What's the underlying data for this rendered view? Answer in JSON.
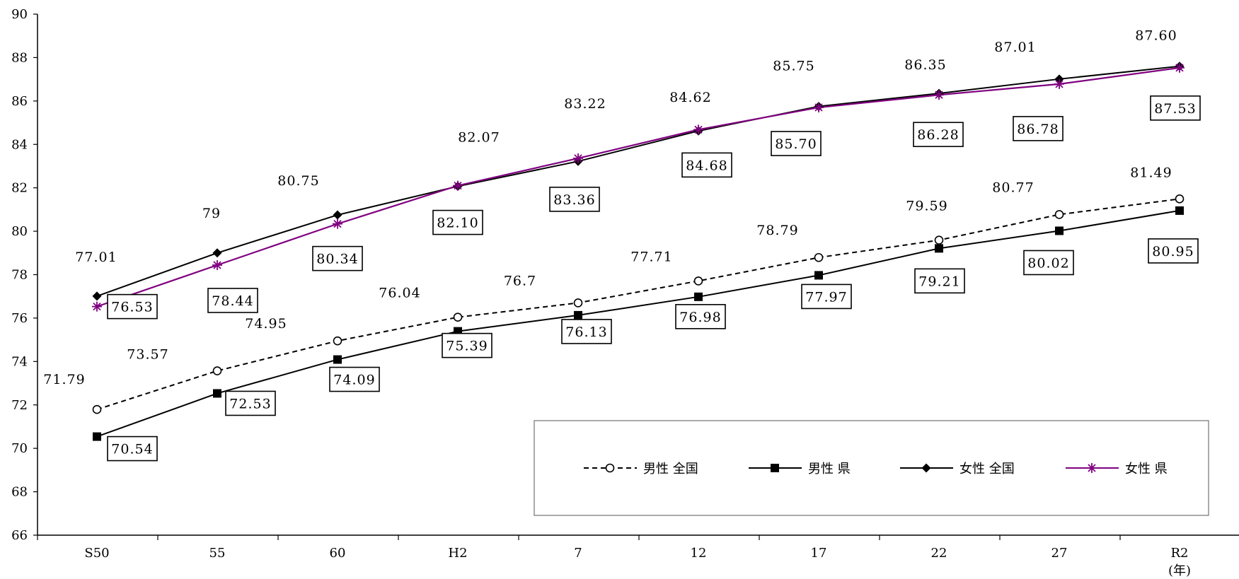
{
  "chart_data": {
    "type": "line",
    "categories": [
      "S50",
      "55",
      "60",
      "H2",
      "7",
      "12",
      "17",
      "22",
      "27",
      "R2"
    ],
    "x_unit": "(年)",
    "ylim": [
      66,
      90
    ],
    "yticks": [
      "66",
      "68",
      "70",
      "72",
      "74",
      "76",
      "78",
      "80",
      "82",
      "84",
      "86",
      "88",
      "90"
    ],
    "grid": false,
    "legend_position": "bottom-right",
    "series": [
      {
        "name": "男性 全国",
        "color": "#000000",
        "dash": "dashed",
        "marker": "open-circle",
        "values": [
          71.79,
          73.57,
          74.95,
          76.04,
          76.7,
          77.71,
          78.79,
          79.59,
          80.77,
          81.49
        ],
        "labels": [
          "71.79",
          "73.57",
          "74.95",
          "76.04",
          "76.7",
          "77.71",
          "78.79",
          "79.59",
          "80.77",
          "81.49"
        ],
        "boxed": false
      },
      {
        "name": "男性 県",
        "color": "#000000",
        "dash": "solid",
        "marker": "square",
        "values": [
          70.54,
          72.53,
          74.09,
          75.39,
          76.13,
          76.98,
          77.97,
          79.21,
          80.02,
          80.95
        ],
        "labels": [
          "70.54",
          "72.53",
          "74.09",
          "75.39",
          "76.13",
          "76.98",
          "77.97",
          "79.21",
          "80.02",
          "80.95"
        ],
        "boxed": true
      },
      {
        "name": "女性 全国",
        "color": "#000000",
        "dash": "solid",
        "marker": "diamond",
        "values": [
          77.01,
          79,
          80.75,
          82.07,
          83.22,
          84.62,
          85.75,
          86.35,
          87.01,
          87.6
        ],
        "labels": [
          "77.01",
          "79",
          "80.75",
          "82.07",
          "83.22",
          "84.62",
          "85.75",
          "86.35",
          "87.01",
          "87.60"
        ],
        "boxed": false
      },
      {
        "name": "女性 県",
        "color": "#800080",
        "dash": "solid",
        "marker": "star",
        "values": [
          76.53,
          78.44,
          80.34,
          82.1,
          83.36,
          84.68,
          85.7,
          86.28,
          86.78,
          87.53
        ],
        "labels": [
          "76.53",
          "78.44",
          "80.34",
          "82.10",
          "83.36",
          "84.68",
          "85.70",
          "86.28",
          "86.78",
          "87.53"
        ],
        "boxed": true
      }
    ]
  }
}
